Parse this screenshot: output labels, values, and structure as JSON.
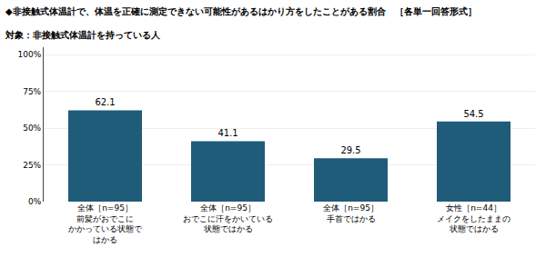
{
  "chart_data": {
    "type": "bar",
    "title": "◆非接触式体温計で、体温を正確に測定できない可能性があるはかり方をしたことがある割合　［各単一回答形式］",
    "subtitle": "対象：非接触式体温計を持っている人",
    "categories": [
      "全体［n=95］\n前髪がおでこに\nかかっている状態で\nはかる",
      "全体［n=95］\nおでこに汗をかいている\n状態ではかる",
      "全体［n=95］\n手首ではかる",
      "女性［n=44］\nメイクをしたままの\n状態ではかる"
    ],
    "values": [
      62.1,
      41.1,
      29.5,
      54.5
    ],
    "color": "#1f5c7a",
    "ylim": [
      0,
      105
    ],
    "yticks": [
      {
        "value": 0,
        "label": "0%"
      },
      {
        "value": 25,
        "label": "25%"
      },
      {
        "value": 50,
        "label": "50%"
      },
      {
        "value": 75,
        "label": "75%"
      },
      {
        "value": 100,
        "label": "100%"
      }
    ],
    "grid": true,
    "data_labels": true
  }
}
